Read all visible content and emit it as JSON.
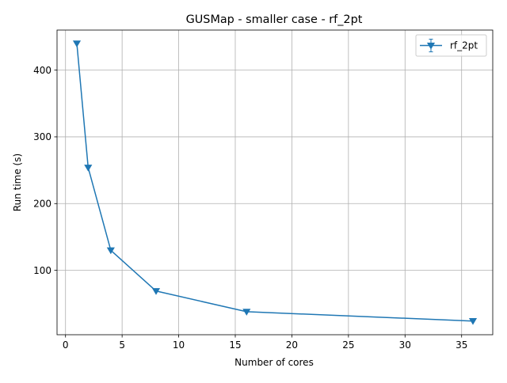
{
  "chart_data": {
    "type": "line",
    "title": "GUSMap - smaller case - rf_2pt",
    "xlabel": "Number of cores",
    "ylabel": "Run time (s)",
    "xlim": [
      -0.75,
      37.75
    ],
    "ylim": [
      3.5,
      460
    ],
    "xticks": [
      0,
      5,
      10,
      15,
      20,
      25,
      30,
      35
    ],
    "yticks": [
      100,
      200,
      300,
      400
    ],
    "grid": true,
    "legend_position": "top-right",
    "series": [
      {
        "name": "rf_2pt",
        "color": "#1f77b4",
        "marker": "triangle-down",
        "x": [
          1,
          2,
          4,
          8,
          16,
          36
        ],
        "y": [
          440,
          254,
          130,
          69,
          38,
          24
        ]
      }
    ]
  }
}
